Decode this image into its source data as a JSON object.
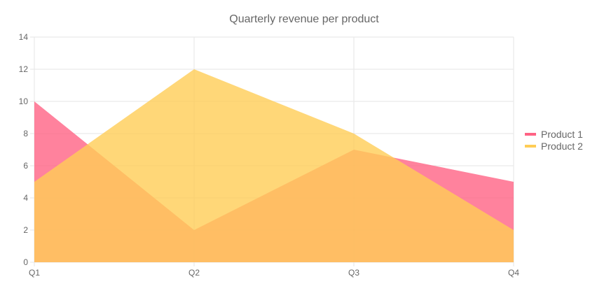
{
  "chart_data": {
    "type": "area",
    "title": "Quarterly revenue per product",
    "xlabel": "",
    "ylabel": "",
    "categories": [
      "Q1",
      "Q2",
      "Q3",
      "Q4"
    ],
    "ylim": [
      0,
      14
    ],
    "yticks": [
      0,
      2,
      4,
      6,
      8,
      10,
      12,
      14
    ],
    "grid": true,
    "legend_position": "right",
    "series": [
      {
        "name": "Product 1",
        "values": [
          10,
          2,
          7,
          5
        ],
        "color": "#ff6384"
      },
      {
        "name": "Product 2",
        "values": [
          5,
          12,
          8,
          2
        ],
        "color": "#ffcd56"
      }
    ]
  }
}
